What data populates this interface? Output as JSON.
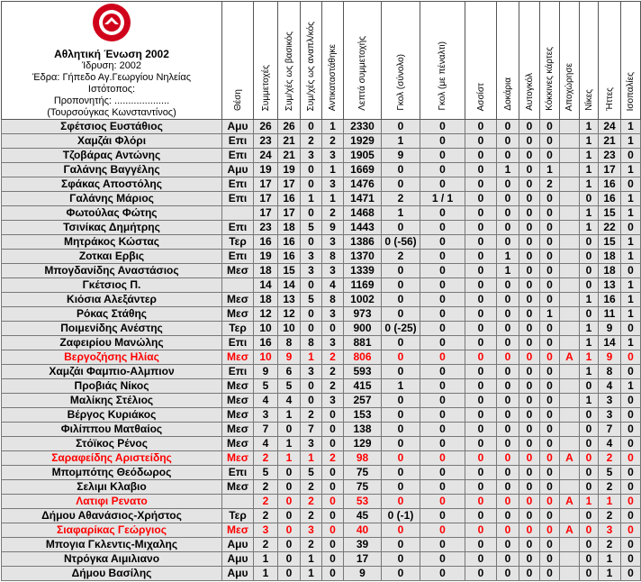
{
  "club": {
    "name": "Αθλητική Ένωση 2002",
    "founded": "Ίδρυση: 2002",
    "stadium": "Έδρα: Γήπεδο Αγ.Γεωργίου Νηλείας",
    "website": "Ιστότοπος:",
    "coach_label": "Προπονητής: ....................",
    "coach": "(Τουρσούγκας Κωνσταντίνος)"
  },
  "columns": [
    "Θέση",
    "Συμμετοχές",
    "Συμ/χές ως βασικός",
    "Συμ/χές ως αναπλ/κός",
    "Αντικαταστάθηκε",
    "Λεπτά συμμετοχής",
    "Γκολ (σύνολο)",
    "Γκολ (με πέναλτι)",
    "Ασσίστ",
    "Δοκάρια",
    "Αυτογκόλ",
    "Κόκκινες κάρτες",
    "Αποχώρησε",
    "Νίκες",
    "Ήττες",
    "Ισοπαλίες"
  ],
  "rows": [
    {
      "cells": [
        "Σφέτσιος Ευστάθιος",
        "Αμυ",
        26,
        26,
        0,
        1,
        2330,
        0,
        0,
        0,
        0,
        0,
        0,
        null,
        1,
        24,
        1
      ]
    },
    {
      "cells": [
        "Χαμζάι Φλόρι",
        "Επι",
        23,
        21,
        2,
        2,
        1929,
        1,
        0,
        0,
        0,
        0,
        0,
        null,
        1,
        21,
        1
      ]
    },
    {
      "cells": [
        "Τζοβάρας Αντώνης",
        "Επι",
        24,
        21,
        3,
        3,
        1905,
        9,
        0,
        0,
        0,
        0,
        0,
        null,
        1,
        23,
        0
      ]
    },
    {
      "cells": [
        "Γαλάνης Βαγγέλης",
        "Αμυ",
        19,
        19,
        0,
        1,
        1669,
        0,
        0,
        0,
        1,
        0,
        1,
        null,
        1,
        17,
        1
      ]
    },
    {
      "cells": [
        "Σφάκας Αποστόλης",
        "Επι",
        17,
        17,
        0,
        3,
        1476,
        0,
        0,
        0,
        0,
        0,
        2,
        null,
        1,
        16,
        0
      ]
    },
    {
      "cells": [
        "Γαλάνης Μάριος",
        "Επι",
        17,
        16,
        1,
        1,
        1471,
        2,
        "1 / 1",
        0,
        0,
        0,
        0,
        null,
        0,
        16,
        1
      ]
    },
    {
      "cells": [
        "Φωτούλας Φώτης",
        null,
        17,
        17,
        0,
        2,
        1468,
        1,
        0,
        0,
        0,
        0,
        0,
        null,
        1,
        15,
        1
      ]
    },
    {
      "cells": [
        "Τσινίκας Δημήτρης",
        "Επι",
        23,
        18,
        5,
        9,
        1443,
        0,
        0,
        0,
        0,
        0,
        0,
        null,
        1,
        22,
        0
      ]
    },
    {
      "cells": [
        "Μητράκος Κώστας",
        "Τερ",
        16,
        16,
        0,
        3,
        1386,
        "0 (-56)",
        0,
        0,
        0,
        0,
        0,
        null,
        0,
        15,
        1
      ]
    },
    {
      "cells": [
        "Ζοτκαι Ερβις",
        "Επι",
        19,
        16,
        3,
        8,
        1370,
        2,
        0,
        0,
        1,
        0,
        0,
        null,
        0,
        18,
        1
      ]
    },
    {
      "cells": [
        "Μπογδανίδης Αναστάσιος",
        "Μεσ",
        18,
        15,
        3,
        3,
        1339,
        0,
        0,
        0,
        1,
        0,
        0,
        null,
        0,
        18,
        0
      ]
    },
    {
      "cells": [
        "Γκέτσιος Π.",
        null,
        14,
        14,
        0,
        4,
        1169,
        0,
        0,
        0,
        0,
        0,
        0,
        null,
        0,
        13,
        1
      ]
    },
    {
      "cells": [
        "Κιόσια Αλεξάντερ",
        "Μεσ",
        18,
        13,
        5,
        8,
        1002,
        0,
        0,
        0,
        0,
        0,
        0,
        null,
        1,
        16,
        1
      ]
    },
    {
      "cells": [
        "Ρόκας Στάθης",
        "Μεσ",
        12,
        12,
        0,
        3,
        973,
        0,
        0,
        0,
        0,
        0,
        1,
        null,
        0,
        11,
        1
      ]
    },
    {
      "cells": [
        "Ποιμενίδης Ανέστης",
        "Τερ",
        10,
        10,
        0,
        0,
        900,
        "0 (-25)",
        0,
        0,
        0,
        0,
        0,
        null,
        1,
        9,
        0
      ]
    },
    {
      "cells": [
        "Ζαφειρίου Μανώλης",
        "Επι",
        16,
        8,
        8,
        3,
        881,
        0,
        0,
        0,
        0,
        0,
        0,
        null,
        1,
        14,
        1
      ]
    },
    {
      "cells": [
        "Βεργοζήσης Ηλίας",
        "Μεσ",
        10,
        9,
        1,
        2,
        806,
        0,
        0,
        0,
        0,
        0,
        0,
        "Α",
        1,
        9,
        0
      ],
      "color": "#ff0000"
    },
    {
      "cells": [
        "Χαμζάι Φαμπιο-Αλμπιον",
        "Επι",
        9,
        6,
        3,
        2,
        593,
        0,
        0,
        0,
        0,
        0,
        0,
        null,
        1,
        8,
        0
      ]
    },
    {
      "cells": [
        "Προβιάς Νίκος",
        "Μεσ",
        5,
        5,
        0,
        2,
        415,
        1,
        0,
        0,
        0,
        0,
        0,
        null,
        0,
        4,
        1
      ]
    },
    {
      "cells": [
        "Μαλίκης Στέλιος",
        "Μεσ",
        4,
        4,
        0,
        3,
        257,
        0,
        0,
        0,
        0,
        0,
        0,
        null,
        1,
        3,
        0
      ]
    },
    {
      "cells": [
        "Βέργος Κυριάκος",
        "Μεσ",
        3,
        1,
        2,
        0,
        153,
        0,
        0,
        0,
        0,
        0,
        0,
        null,
        0,
        3,
        0
      ]
    },
    {
      "cells": [
        "Φιλίππου Ματθαίος",
        "Μεσ",
        7,
        0,
        7,
        0,
        138,
        0,
        0,
        0,
        0,
        0,
        0,
        null,
        0,
        7,
        0
      ]
    },
    {
      "cells": [
        "Στόϊκος Ρένος",
        "Μεσ",
        4,
        1,
        3,
        0,
        129,
        0,
        0,
        0,
        0,
        0,
        0,
        null,
        0,
        4,
        0
      ]
    },
    {
      "cells": [
        "Σαραφείδης Αριστείδης",
        "Μεσ",
        2,
        1,
        1,
        2,
        98,
        0,
        0,
        0,
        0,
        0,
        0,
        "Α",
        0,
        2,
        0
      ],
      "color": "#ff0000"
    },
    {
      "cells": [
        "Μπομπότης Θεόδωρος",
        "Επι",
        5,
        0,
        5,
        0,
        75,
        0,
        0,
        0,
        0,
        0,
        0,
        null,
        0,
        5,
        0
      ]
    },
    {
      "cells": [
        "Σελιμι Κλαβιο",
        "Μεσ",
        2,
        0,
        2,
        0,
        75,
        0,
        0,
        0,
        0,
        0,
        0,
        null,
        0,
        2,
        0
      ]
    },
    {
      "cells": [
        "Λατιφι Ρενατο",
        null,
        2,
        0,
        2,
        0,
        53,
        0,
        0,
        0,
        0,
        0,
        0,
        "Α",
        1,
        1,
        0
      ],
      "color": "#ff0000"
    },
    {
      "cells": [
        "Δήμου Αθανάσιος-Χρήστος",
        "Τερ",
        2,
        0,
        2,
        0,
        45,
        "0 (-1)",
        0,
        0,
        0,
        0,
        0,
        null,
        0,
        2,
        0
      ]
    },
    {
      "cells": [
        "Σιαφαρίκας Γεώργιος",
        "Μεσ",
        3,
        0,
        3,
        0,
        40,
        0,
        0,
        0,
        0,
        0,
        0,
        "Α",
        0,
        3,
        0
      ],
      "color": "#ff0000"
    },
    {
      "cells": [
        "Μπογια Γκλεντις-Μιχαλης",
        "Αμυ",
        2,
        0,
        2,
        0,
        39,
        0,
        0,
        0,
        0,
        0,
        0,
        null,
        0,
        2,
        0
      ]
    },
    {
      "cells": [
        "Ντρόγκα Αιμιλιανο",
        "Αμυ",
        1,
        0,
        1,
        0,
        17,
        0,
        0,
        0,
        0,
        0,
        0,
        null,
        0,
        1,
        0
      ]
    },
    {
      "cells": [
        "Δήμου Βασίλης",
        "Αμυ",
        1,
        0,
        1,
        0,
        9,
        0,
        0,
        0,
        0,
        0,
        0,
        null,
        0,
        1,
        0
      ]
    }
  ]
}
